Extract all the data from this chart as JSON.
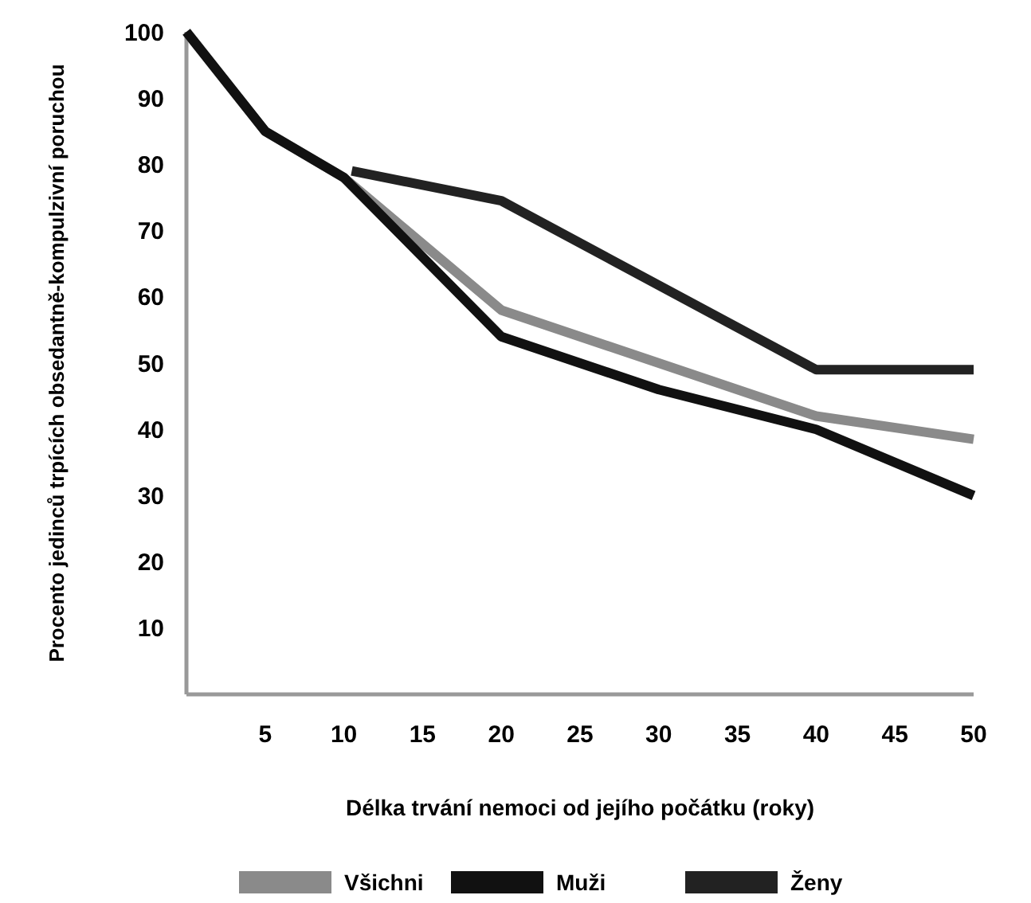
{
  "chart_data": {
    "type": "line",
    "xlabel": "Délka trvání nemoci od jejího počátku (roky)",
    "ylabel": "Procento jedinců trpících obsedantně-kompulzivní poruchou",
    "xlim": [
      0,
      50
    ],
    "xticks": [
      5,
      10,
      15,
      20,
      25,
      30,
      35,
      40,
      45,
      50
    ],
    "ylim": [
      0,
      100
    ],
    "yticks": [
      10,
      20,
      30,
      40,
      50,
      60,
      70,
      80,
      90,
      100
    ],
    "legend": "bottom",
    "grid": false,
    "marker": "none",
    "line_style": "solid",
    "series": [
      {
        "name": "Všichni",
        "color": "#8a8a8a",
        "x": [
          0,
          5,
          10,
          20,
          40,
          50
        ],
        "values": [
          100,
          85,
          78,
          58,
          42,
          38.5
        ]
      },
      {
        "name": "Muži",
        "color": "#111111",
        "x": [
          0,
          5,
          10,
          20,
          30,
          40,
          50
        ],
        "values": [
          100,
          85,
          78,
          54,
          46,
          40,
          30
        ]
      },
      {
        "name": "Ženy",
        "color": "#222222",
        "x": [
          10.5,
          20,
          40,
          50
        ],
        "values": [
          79,
          74.5,
          49,
          49
        ]
      }
    ]
  }
}
